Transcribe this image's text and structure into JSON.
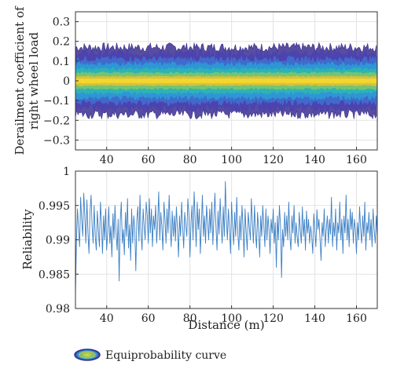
{
  "chart_data": [
    {
      "type": "area",
      "ylabel_lines": [
        "Derailment coefficient of",
        "right wheel load"
      ],
      "xlabel": "",
      "xlim": [
        25,
        170
      ],
      "ylim": [
        -0.35,
        0.35
      ],
      "xticks": [
        40,
        60,
        80,
        100,
        120,
        140,
        160
      ],
      "yticks": [
        -0.3,
        -0.2,
        -0.1,
        0,
        0.1,
        0.2,
        0.3
      ],
      "ytick_labels": [
        "−0.3",
        "−0.2",
        "−0.1",
        "0",
        "0.1",
        "0.2",
        "0.3"
      ],
      "grid": true,
      "bands": [
        {
          "half_width": 0.17,
          "color": "#3b2f8f"
        },
        {
          "half_width": 0.14,
          "color": "#4c43b0"
        },
        {
          "half_width": 0.11,
          "color": "#3f6fcf"
        },
        {
          "half_width": 0.085,
          "color": "#2c9bd6"
        },
        {
          "half_width": 0.06,
          "color": "#2fb6b0"
        },
        {
          "half_width": 0.04,
          "color": "#7cc56d"
        },
        {
          "half_width": 0.022,
          "color": "#e0c23a"
        },
        {
          "half_width": 0.01,
          "color": "#f6d82c"
        }
      ]
    },
    {
      "type": "line",
      "xlabel": "Distance (m)",
      "ylabel": "Reliability",
      "xlim": [
        25,
        170
      ],
      "ylim": [
        0.98,
        1.0
      ],
      "xticks": [
        40,
        60,
        80,
        100,
        120,
        140,
        160
      ],
      "yticks": [
        0.98,
        0.985,
        0.99,
        0.995,
        1.0
      ],
      "ytick_labels": [
        "0.98",
        "0.985",
        "0.99",
        "0.995",
        "1"
      ],
      "grid": true,
      "series": [
        {
          "color": "#3b7fc4",
          "x_start": 25,
          "x_step": 0.5,
          "values": [
            0.982,
            0.99,
            0.9945,
            0.9915,
            0.989,
            0.9962,
            0.993,
            0.9905,
            0.9968,
            0.9935,
            0.9895,
            0.9958,
            0.991,
            0.988,
            0.994,
            0.9965,
            0.992,
            0.9895,
            0.995,
            0.9905,
            0.9885,
            0.9942,
            0.9915,
            0.989,
            0.9955,
            0.9925,
            0.988,
            0.9935,
            0.99,
            0.9945,
            0.9885,
            0.991,
            0.9948,
            0.9895,
            0.992,
            0.9875,
            0.9938,
            0.9902,
            0.995,
            0.9912,
            0.9885,
            0.993,
            0.984,
            0.9925,
            0.9955,
            0.9895,
            0.9915,
            0.9878,
            0.994,
            0.9905,
            0.996,
            0.9888,
            0.9922,
            0.987,
            0.9945,
            0.9895,
            0.9935,
            0.9915,
            0.9855,
            0.993,
            0.9948,
            0.9898,
            0.9965,
            0.991,
            0.9885,
            0.9945,
            0.992,
            0.99,
            0.9955,
            0.9935,
            0.9895,
            0.996,
            0.991,
            0.9945,
            0.989,
            0.9935,
            0.9915,
            0.995,
            0.9895,
            0.9925,
            0.997,
            0.99,
            0.994,
            0.992,
            0.9885,
            0.9955,
            0.993,
            0.9895,
            0.9945,
            0.991,
            0.9965,
            0.992,
            0.989,
            0.9942,
            0.9905,
            0.9935,
            0.9898,
            0.9948,
            0.9915,
            0.9875,
            0.9935,
            0.9905,
            0.9955,
            0.9918,
            0.9888,
            0.994,
            0.992,
            0.9905,
            0.996,
            0.9935,
            0.9875,
            0.9925,
            0.995,
            0.99,
            0.997,
            0.993,
            0.989,
            0.9955,
            0.9915,
            0.9945,
            0.988,
            0.992,
            0.9965,
            0.9905,
            0.9935,
            0.9895,
            0.995,
            0.9925,
            0.99,
            0.9945,
            0.991,
            0.9955,
            0.9893,
            0.993,
            0.9968,
            0.9918,
            0.9885,
            0.9942,
            0.9908,
            0.996,
            0.992,
            0.9895,
            0.9948,
            0.9905,
            0.9985,
            0.993,
            0.99,
            0.9945,
            0.9915,
            0.988,
            0.9955,
            0.992,
            0.9893,
            0.994,
            0.9905,
            0.9962,
            0.991,
            0.9885,
            0.9935,
            0.99,
            0.995,
            0.992,
            0.9875,
            0.9945,
            0.991,
            0.9885,
            0.994,
            0.992,
            0.99,
            0.996,
            0.9925,
            0.9895,
            0.995,
            0.991,
            0.9888,
            0.994,
            0.9915,
            0.9875,
            0.9935,
            0.9905,
            0.995,
            0.992,
            0.989,
            0.9945,
            0.99,
            0.9935,
            0.9915,
            0.988,
            0.993,
            0.991,
            0.9945,
            0.9895,
            0.9925,
            0.986,
            0.9935,
            0.99,
            0.995,
            0.992,
            0.9845,
            0.9915,
            0.989,
            0.994,
            0.9905,
            0.9935,
            0.99,
            0.9955,
            0.9905,
            0.9885,
            0.9935,
            0.991,
            0.995,
            0.9895,
            0.9925,
            0.9905,
            0.989,
            0.994,
            0.9915,
            0.9895,
            0.9948,
            0.9905,
            0.993,
            0.9885,
            0.9942,
            0.991,
            0.993,
            0.9895,
            0.992,
            0.9905,
            0.988,
            0.9938,
            0.9912,
            0.989,
            0.9944,
            0.9915,
            0.993,
            0.99,
            0.987,
            0.9925,
            0.9905,
            0.9945,
            0.989,
            0.9915,
            0.9935,
            0.9895,
            0.993,
            0.9908,
            0.9962,
            0.989,
            0.9925,
            0.9905,
            0.9945,
            0.9885,
            0.9925,
            0.991,
            0.9955,
            0.99,
            0.993,
            0.988,
            0.9935,
            0.991,
            0.9965,
            0.99,
            0.993,
            0.989,
            0.9945,
            0.9915,
            0.994,
            0.9895,
            0.993,
            0.9915,
            0.988,
            0.9925,
            0.99,
            0.9948,
            0.9915,
            0.9895,
            0.9935,
            0.9905,
            0.9955,
            0.9885,
            0.9925,
            0.991,
            0.994,
            0.99,
            0.993,
            0.989,
            0.9945,
            0.9915,
            0.9895,
            0.9935,
            0.9905,
            0.9975,
            0.9905,
            0.989,
            0.995,
            0.99,
            0.998,
            0.9915,
            0.9885,
            0.9945,
            0.9895,
            0.993,
            0.99,
            0.996,
            0.991,
            0.9945,
            0.9885,
            0.993,
            0.99,
            0.9945,
            0.989,
            0.993,
            0.9908,
            0.9975,
            0.992,
            0.9893,
            0.9955,
            0.991,
            0.994,
            0.99,
            0.9935,
            0.9915,
            0.9888,
            0.9945,
            0.9905,
            0.993,
            0.9895,
            0.995,
            0.9915,
            0.9935,
            0.9895,
            0.9925,
            0.9915,
            0.994,
            0.992,
            0.99,
            0.9935,
            0.9915,
            0.9885,
            0.9925,
            0.9905
          ]
        }
      ]
    }
  ],
  "legend": {
    "label": "Equiprobability curve"
  }
}
